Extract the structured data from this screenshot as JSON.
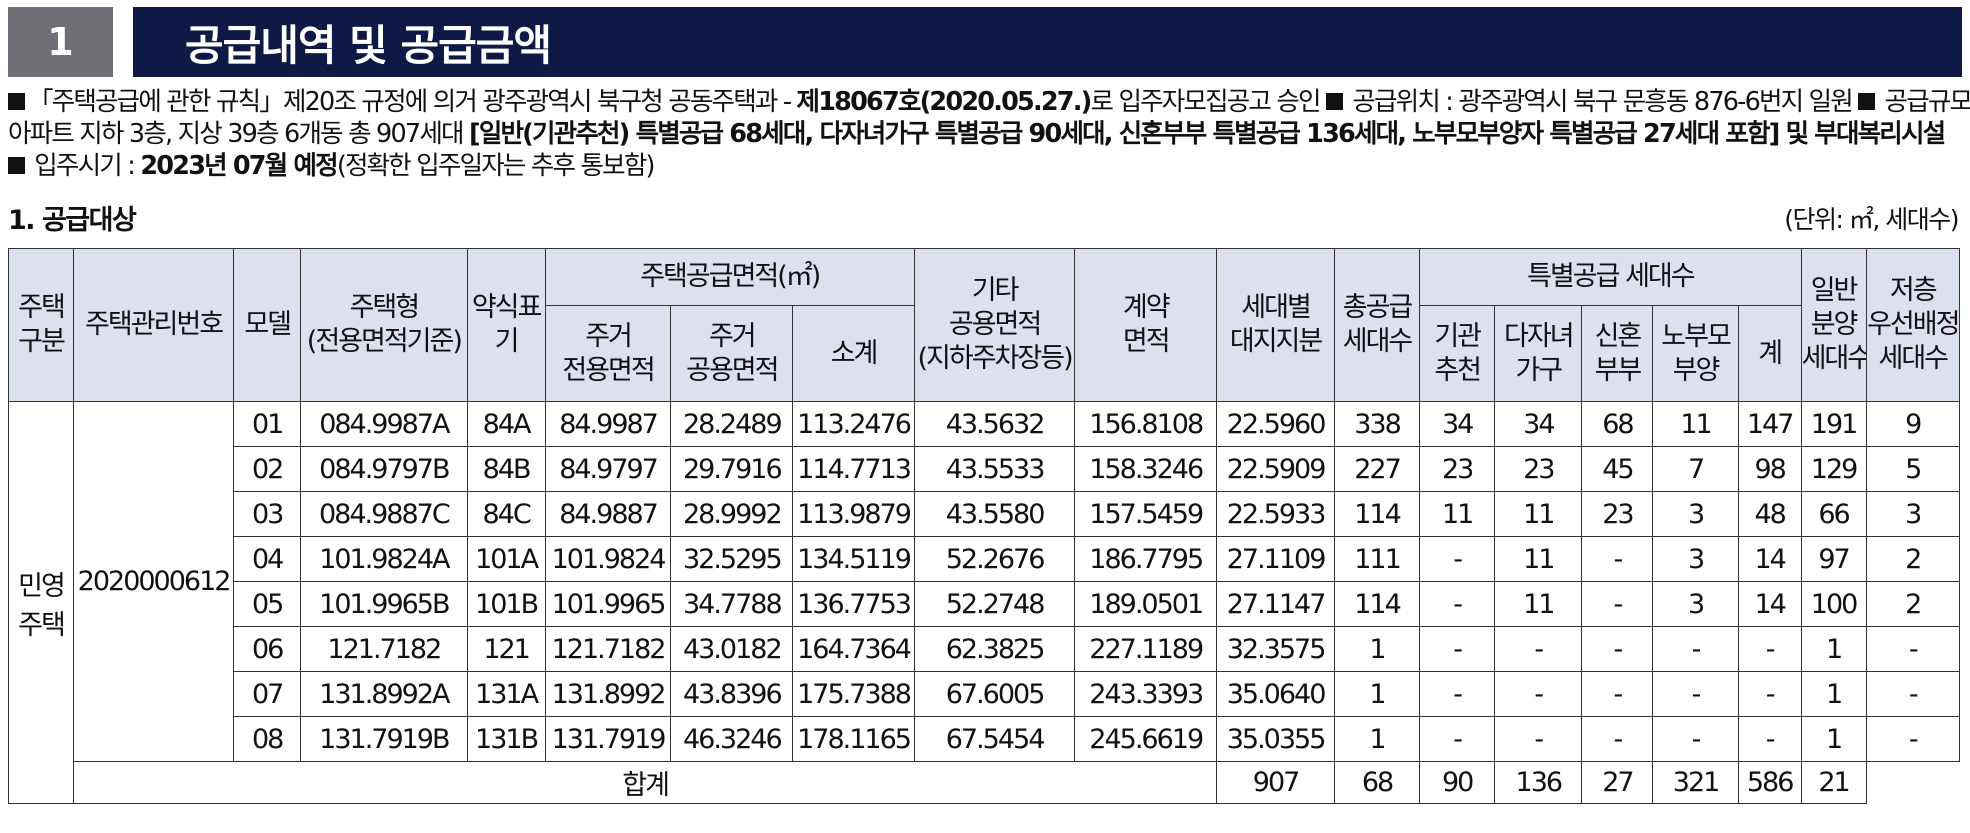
{
  "header": {
    "number": "1",
    "title": "공급내역 및 공급금액"
  },
  "notes": {
    "line1_a": "「주택공급에 관한 규칙」제20조 규정에 의거 광주광역시 북구청 공동주택과 - ",
    "line1_b": "제18067호(2020.05.27.)",
    "line1_c": "로 입주자모집공고 승인 ",
    "line1_d": " 공급위치 : 광주광역시 북구 문흥동 876-6번지 일원 ",
    "line1_e": " 공급규모 및 내역 :",
    "line2_a": "아파트 지하 3층, 지상 39층 6개동 총 907세대  ",
    "line2_b": "[일반(기관추천) 특별공급 68세대, 다자녀가구 특별공급 90세대, 신혼부부 특별공급 136세대, 노부모부양자 특별공급 27세대 포함] 및 부대복리시설",
    "line3_a": " 입주시기 : ",
    "line3_b": "2023년 07월 예정",
    "line3_c": "(정확한 입주일자는 추후 통보함)"
  },
  "section_title": "1. 공급대상",
  "unit_label": "(단위: ㎡, 세대수)",
  "table": {
    "headers": {
      "type": [
        "주택",
        "구분"
      ],
      "mgmt_no": "주택관리번호",
      "model": "모델",
      "housing_type": [
        "주택형",
        "(전용면적기준)"
      ],
      "short": [
        "약식표",
        "기"
      ],
      "area_group": "주택공급면적(㎡)",
      "exclusive": [
        "주거",
        "전용면적"
      ],
      "common": [
        "주거",
        "공용면적"
      ],
      "subtotal": "소계",
      "other": [
        "기타",
        "공용면적",
        "(지하주차장등)"
      ],
      "contract": [
        "계약",
        "면적"
      ],
      "land": [
        "세대별",
        "대지지분"
      ],
      "total_units": [
        "총공급",
        "세대수"
      ],
      "special_group": "특별공급 세대수",
      "inst": [
        "기관",
        "추천"
      ],
      "multi": [
        "다자녀",
        "가구"
      ],
      "newlywed": [
        "신혼",
        "부부"
      ],
      "elderly": [
        "노부모",
        "부양"
      ],
      "sp_sum": "계",
      "general": [
        "일반",
        "분양",
        "세대수"
      ],
      "low_floor": [
        "저층",
        "우선배정",
        "세대수"
      ]
    },
    "housing_kind": [
      "민영",
      "주택"
    ],
    "mgmt_number": "2020000612",
    "rows": [
      [
        "01",
        "084.9987A",
        "84A",
        "84.9987",
        "28.2489",
        "113.2476",
        "43.5632",
        "156.8108",
        "22.5960",
        "338",
        "34",
        "34",
        "68",
        "11",
        "147",
        "191",
        "9"
      ],
      [
        "02",
        "084.9797B",
        "84B",
        "84.9797",
        "29.7916",
        "114.7713",
        "43.5533",
        "158.3246",
        "22.5909",
        "227",
        "23",
        "23",
        "45",
        "7",
        "98",
        "129",
        "5"
      ],
      [
        "03",
        "084.9887C",
        "84C",
        "84.9887",
        "28.9992",
        "113.9879",
        "43.5580",
        "157.5459",
        "22.5933",
        "114",
        "11",
        "11",
        "23",
        "3",
        "48",
        "66",
        "3"
      ],
      [
        "04",
        "101.9824A",
        "101A",
        "101.9824",
        "32.5295",
        "134.5119",
        "52.2676",
        "186.7795",
        "27.1109",
        "111",
        "-",
        "11",
        "-",
        "3",
        "14",
        "97",
        "2"
      ],
      [
        "05",
        "101.9965B",
        "101B",
        "101.9965",
        "34.7788",
        "136.7753",
        "52.2748",
        "189.0501",
        "27.1147",
        "114",
        "-",
        "11",
        "-",
        "3",
        "14",
        "100",
        "2"
      ],
      [
        "06",
        "121.7182",
        "121",
        "121.7182",
        "43.0182",
        "164.7364",
        "62.3825",
        "227.1189",
        "32.3575",
        "1",
        "-",
        "-",
        "-",
        "-",
        "-",
        "1",
        "-"
      ],
      [
        "07",
        "131.8992A",
        "131A",
        "131.8992",
        "43.8396",
        "175.7388",
        "67.6005",
        "243.3393",
        "35.0640",
        "1",
        "-",
        "-",
        "-",
        "-",
        "-",
        "1",
        "-"
      ],
      [
        "08",
        "131.7919B",
        "131B",
        "131.7919",
        "46.3246",
        "178.1165",
        "67.5454",
        "245.6619",
        "35.0355",
        "1",
        "-",
        "-",
        "-",
        "-",
        "-",
        "1",
        "-"
      ]
    ],
    "total_label": "합계",
    "totals": [
      "907",
      "68",
      "90",
      "136",
      "27",
      "321",
      "586",
      "21"
    ]
  }
}
